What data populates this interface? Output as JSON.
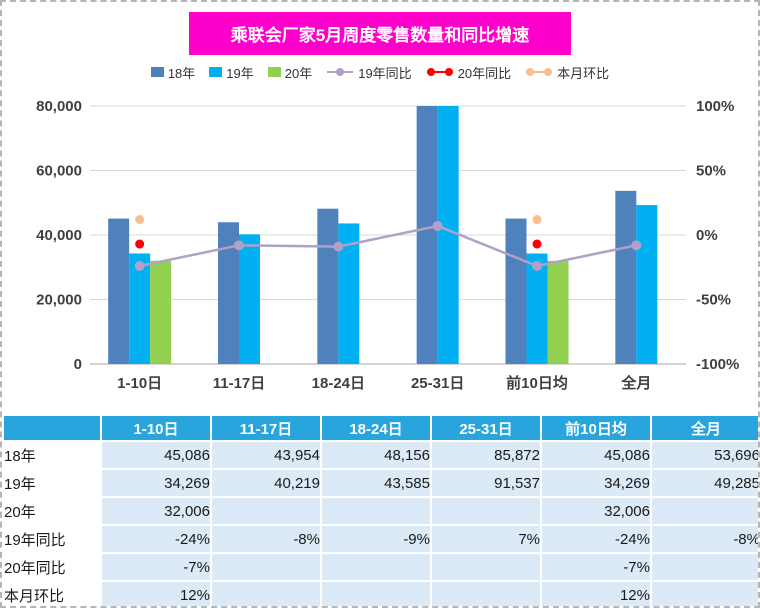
{
  "title": "乘联会厂家5月周度零售数量和同比增速",
  "colors": {
    "title_bg": "#FF00CC",
    "table_header_bg": "#27A5DC",
    "table_cell_bg": "#DCE9F6",
    "bar_18": "#4F81BD",
    "bar_19": "#00B0F0",
    "bar_20": "#92D050",
    "line_19yoy": "#B1A0C7",
    "dot_20yoy": "#FF0000",
    "dot_mom": "#FABF8F"
  },
  "legend": [
    {
      "label": "18年",
      "swatch": "square",
      "color": "#4F81BD"
    },
    {
      "label": "19年",
      "swatch": "square",
      "color": "#00B0F0"
    },
    {
      "label": "20年",
      "swatch": "square",
      "color": "#92D050"
    },
    {
      "label": "19年同比",
      "swatch": "line-center",
      "color": "#B1A0C7"
    },
    {
      "label": "20年同比",
      "swatch": "line-ends",
      "color": "#FF0000"
    },
    {
      "label": "本月环比",
      "swatch": "line-ends",
      "color": "#FABF8F"
    }
  ],
  "chart_data": {
    "type": "bar",
    "title": "乘联会厂家5月周度零售数量和同比增速",
    "categories": [
      "1-10日",
      "11-17日",
      "18-24日",
      "25-31日",
      "前10日均",
      "全月"
    ],
    "series": [
      {
        "name": "18年",
        "kind": "bar",
        "color": "#4F81BD",
        "values": [
          45086,
          43954,
          48156,
          85872,
          45086,
          53696
        ]
      },
      {
        "name": "19年",
        "kind": "bar",
        "color": "#00B0F0",
        "values": [
          34269,
          40219,
          43585,
          91537,
          34269,
          49285
        ]
      },
      {
        "name": "20年",
        "kind": "bar",
        "color": "#92D050",
        "values": [
          32006,
          null,
          null,
          null,
          32006,
          null
        ]
      },
      {
        "name": "19年同比",
        "kind": "line",
        "color": "#B1A0C7",
        "values": [
          -24,
          -8,
          -9,
          7,
          -24,
          -8
        ]
      },
      {
        "name": "20年同比",
        "kind": "points",
        "color": "#FF0000",
        "values": [
          -7,
          null,
          null,
          null,
          -7,
          null
        ]
      },
      {
        "name": "本月环比",
        "kind": "points",
        "color": "#FABF8F",
        "values": [
          12,
          null,
          null,
          null,
          12,
          null
        ]
      }
    ],
    "left_axis": {
      "min": 0,
      "max": 80000,
      "ticks": [
        "80,000",
        "60,000",
        "40,000",
        "20,000",
        "0"
      ]
    },
    "right_axis": {
      "min": -100,
      "max": 100,
      "ticks": [
        "100%",
        "50%",
        "0%",
        "-50%",
        "-100%"
      ],
      "unit": "%"
    },
    "grid": true,
    "legend_position": "top"
  },
  "table": {
    "corner": "",
    "columns": [
      "1-10日",
      "11-17日",
      "18-24日",
      "25-31日",
      "前10日均",
      "全月"
    ],
    "rows": [
      {
        "label": "18年",
        "cells": [
          "45,086",
          "43,954",
          "48,156",
          "85,872",
          "45,086",
          "53,696"
        ]
      },
      {
        "label": "19年",
        "cells": [
          "34,269",
          "40,219",
          "43,585",
          "91,537",
          "34,269",
          "49,285"
        ]
      },
      {
        "label": "20年",
        "cells": [
          "32,006",
          "",
          "",
          "",
          "32,006",
          ""
        ]
      },
      {
        "label": "19年同比",
        "cells": [
          "-24%",
          "-8%",
          "-9%",
          "7%",
          "-24%",
          "-8%"
        ]
      },
      {
        "label": "20年同比",
        "cells": [
          "-7%",
          "",
          "",
          "",
          "-7%",
          ""
        ]
      },
      {
        "label": "本月环比",
        "cells": [
          "12%",
          "",
          "",
          "",
          "12%",
          ""
        ]
      }
    ]
  }
}
